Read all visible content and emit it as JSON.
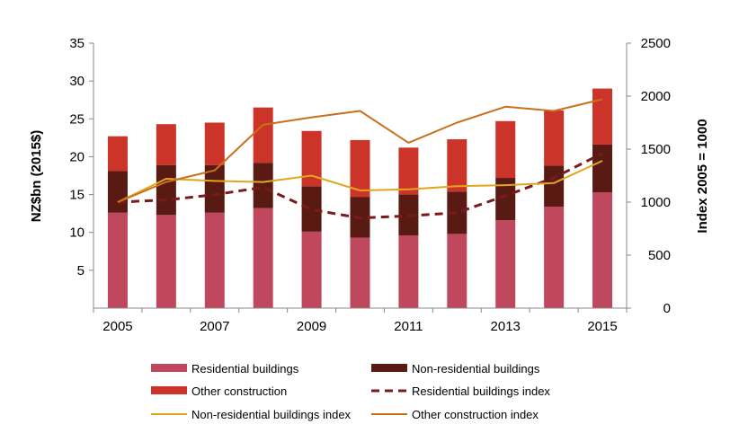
{
  "chart_data": {
    "type": "bar",
    "categories": [
      "2005",
      "2006",
      "2007",
      "2008",
      "2009",
      "2010",
      "2011",
      "2012",
      "2013",
      "2014",
      "2015"
    ],
    "x_tick_labels": [
      "2005",
      "2007",
      "2009",
      "2011",
      "2013",
      "2015"
    ],
    "series": [
      {
        "name": "Residential buildings",
        "type": "bar",
        "axis": "left",
        "color": "#c0485e",
        "values": [
          12.6,
          12.3,
          12.6,
          13.2,
          10.1,
          9.3,
          9.6,
          9.8,
          11.6,
          13.4,
          15.3
        ]
      },
      {
        "name": "Non-residential buildings",
        "type": "bar",
        "axis": "left",
        "color": "#5a1a14",
        "values": [
          5.5,
          6.6,
          6.3,
          6.0,
          6.0,
          5.4,
          5.4,
          5.6,
          5.6,
          5.4,
          6.3
        ]
      },
      {
        "name": "Other construction",
        "type": "bar",
        "axis": "left",
        "color": "#cc3329",
        "values": [
          4.6,
          5.4,
          5.6,
          7.3,
          7.3,
          7.5,
          6.2,
          6.9,
          7.5,
          7.3,
          7.4
        ]
      },
      {
        "name": "Residential buildings index",
        "type": "line",
        "axis": "right",
        "style": "dashed",
        "color": "#7b1a1a",
        "values": [
          1000,
          1020,
          1070,
          1140,
          930,
          850,
          870,
          900,
          1060,
          1230,
          1460
        ]
      },
      {
        "name": "Non-residential buildings index",
        "type": "line",
        "axis": "right",
        "style": "solid",
        "color": "#e2a61e",
        "values": [
          1000,
          1220,
          1200,
          1190,
          1250,
          1110,
          1120,
          1150,
          1160,
          1180,
          1390
        ]
      },
      {
        "name": "Other construction index",
        "type": "line",
        "axis": "right",
        "style": "solid",
        "color": "#c8701c",
        "values": [
          1000,
          1190,
          1300,
          1730,
          1800,
          1860,
          1560,
          1750,
          1900,
          1860,
          1970
        ]
      }
    ],
    "ylabel": "NZ$bn (2015$)",
    "ylim": [
      0,
      35
    ],
    "yticks": [
      "5",
      "10",
      "15",
      "20",
      "25",
      "30",
      "35"
    ],
    "y2label": "Index 2005 = 1000",
    "y2lim": [
      0,
      2500
    ],
    "y2ticks": [
      "0",
      "500",
      "1000",
      "1500",
      "2000",
      "2500"
    ],
    "grid": false,
    "legend_position": "bottom"
  }
}
